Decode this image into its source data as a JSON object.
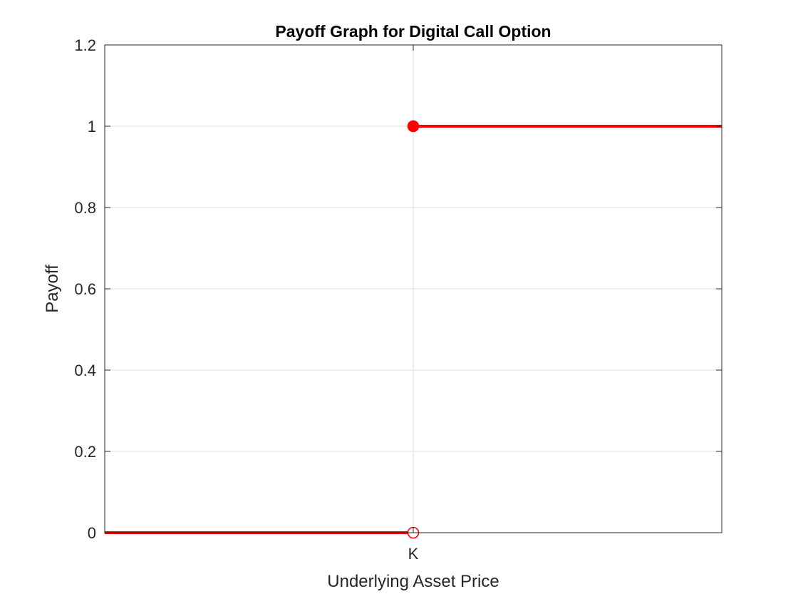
{
  "chart_data": {
    "type": "line",
    "title": "Payoff Graph for Digital Call Option",
    "xlabel": "Underlying Asset Price",
    "ylabel": "Payoff",
    "xlim": [
      0,
      2
    ],
    "ylim": [
      0,
      1.2
    ],
    "x_ticks": [
      {
        "value": 1,
        "label": "K"
      }
    ],
    "y_ticks": [
      {
        "value": 0,
        "label": "0"
      },
      {
        "value": 0.2,
        "label": "0.2"
      },
      {
        "value": 0.4,
        "label": "0.4"
      },
      {
        "value": 0.6,
        "label": "0.6"
      },
      {
        "value": 0.8,
        "label": "0.8"
      },
      {
        "value": 1,
        "label": "1"
      },
      {
        "value": 1.2,
        "label": "1.2"
      }
    ],
    "grid": true,
    "segments": [
      {
        "x": [
          0,
          1
        ],
        "y": [
          0,
          0
        ]
      },
      {
        "x": [
          1,
          2
        ],
        "y": [
          1,
          1
        ]
      }
    ],
    "markers": [
      {
        "x": 1,
        "y": 1,
        "fill": "filled"
      },
      {
        "x": 1,
        "y": 0,
        "fill": "open"
      }
    ],
    "colors": {
      "series": "#ff0000",
      "axis": "#262626",
      "grid": "#dedede"
    }
  }
}
